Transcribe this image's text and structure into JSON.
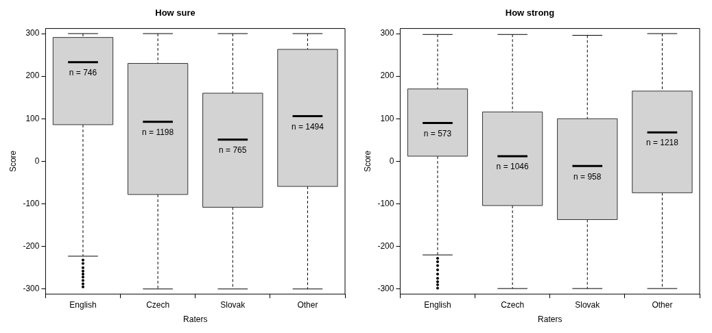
{
  "chart_data": [
    {
      "type": "box",
      "title": "How sure",
      "xlabel": "Raters",
      "ylabel": "Score",
      "categories": [
        "English",
        "Czech",
        "Slovak",
        "Other"
      ],
      "color": "#d3d3d3",
      "ylim": [
        -312,
        312
      ],
      "yticks": [
        -300,
        -200,
        -100,
        0,
        100,
        200,
        300
      ],
      "grid": false,
      "legend": false,
      "boxes": [
        {
          "low": -223,
          "q1": 86,
          "median": 233,
          "q3": 291,
          "high": 300,
          "outliers": [
            -232,
            -240,
            -250,
            -258,
            -265,
            -272,
            -280,
            -288,
            -295
          ]
        },
        {
          "low": -300,
          "q1": -78,
          "median": 93,
          "q3": 230,
          "high": 300
        },
        {
          "low": -300,
          "q1": -108,
          "median": 51,
          "q3": 160,
          "high": 300
        },
        {
          "low": -300,
          "q1": -59,
          "median": 106,
          "q3": 263,
          "high": 300
        }
      ],
      "annotations": [
        "n = 746",
        "n = 1198",
        "n = 765",
        "n = 1494"
      ]
    },
    {
      "type": "box",
      "title": "How strong",
      "xlabel": "Raters",
      "ylabel": "Score",
      "categories": [
        "English",
        "Czech",
        "Slovak",
        "Other"
      ],
      "color": "#d3d3d3",
      "ylim": [
        -312,
        312
      ],
      "yticks": [
        -300,
        -200,
        -100,
        0,
        100,
        200,
        300
      ],
      "grid": false,
      "legend": false,
      "boxes": [
        {
          "low": -220,
          "q1": 12,
          "median": 90,
          "q3": 170,
          "high": 298,
          "outliers": [
            -228,
            -236,
            -245,
            -255,
            -265,
            -275,
            -283,
            -290,
            -298
          ]
        },
        {
          "low": -299,
          "q1": -104,
          "median": 12,
          "q3": 116,
          "high": 298
        },
        {
          "low": -299,
          "q1": -137,
          "median": -11,
          "q3": 100,
          "high": 296
        },
        {
          "low": -299,
          "q1": -74,
          "median": 68,
          "q3": 165,
          "high": 300
        }
      ],
      "annotations": [
        "n = 573",
        "n = 1046",
        "n = 958",
        "n = 1218"
      ]
    }
  ]
}
